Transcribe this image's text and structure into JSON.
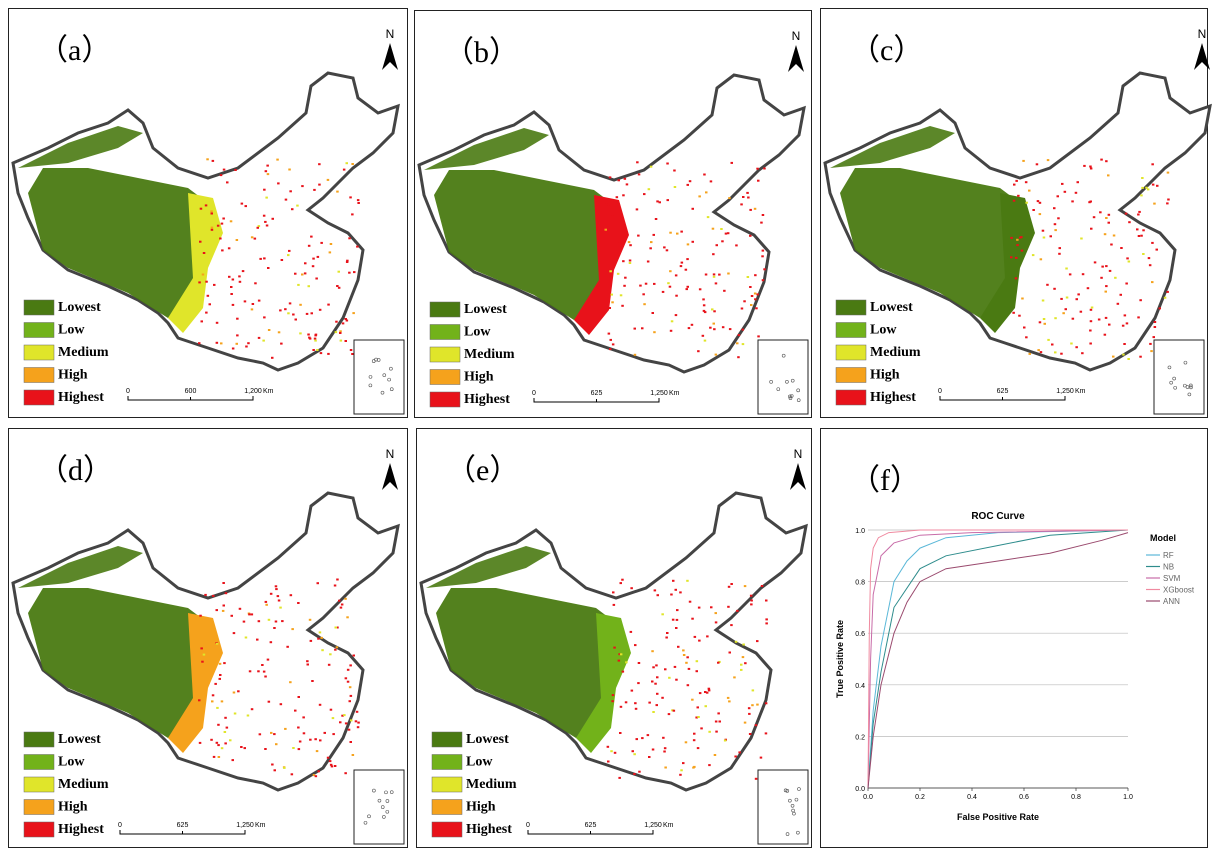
{
  "map_colors": [
    "#4a7a12",
    "#72b21a",
    "#e0e52a",
    "#f5a21c",
    "#e8121a"
  ],
  "panels": [
    {
      "label": "（a）",
      "north": "N",
      "legend": [
        "Lowest",
        "Low",
        "Medium",
        "High",
        "Highest"
      ],
      "scale": [
        "0",
        "600",
        "1,200",
        "Km"
      ]
    },
    {
      "label": "（b）",
      "north": "N",
      "legend": [
        "Lowest",
        "Low",
        "Medium",
        "High",
        "Highest"
      ],
      "scale": [
        "0",
        "625",
        "1,250",
        "Km"
      ]
    },
    {
      "label": "（c）",
      "north": "N",
      "legend": [
        "Lowest",
        "Low",
        "Medium",
        "High",
        "Highest"
      ],
      "scale": [
        "0",
        "625",
        "1,250",
        "Km"
      ]
    },
    {
      "label": "（d）",
      "north": "N",
      "legend": [
        "Lowest",
        "Low",
        "Medium",
        "High",
        "Highest"
      ],
      "scale": [
        "0",
        "625",
        "1,250",
        "Km"
      ]
    },
    {
      "label": "（e）",
      "north": "N",
      "legend": [
        "Lowest",
        "Low",
        "Medium",
        "High",
        "Highest"
      ],
      "scale": [
        "0",
        "625",
        "1,250",
        "Km"
      ]
    }
  ],
  "chart_data": {
    "type": "line",
    "label": "（f）",
    "title": "ROC Curve",
    "x_label": "False Positive Rate",
    "y_label": "True Positive Rate",
    "legend_title": "Model",
    "xlim": [
      0,
      1
    ],
    "ylim": [
      0,
      1
    ],
    "xticks": [
      {
        "value": 0,
        "label": "0.0"
      },
      0.2,
      0.4,
      0.6,
      0.8,
      {
        "value": 1,
        "label": "1.0"
      }
    ],
    "yticks": [
      {
        "value": 0,
        "label": "0.0"
      },
      0.2,
      0.4,
      0.6,
      0.8,
      {
        "value": 1,
        "label": "1.0"
      }
    ],
    "grid": true,
    "series": [
      {
        "name": "RF",
        "color": "#5bb8d8",
        "x": [
          0,
          0.02,
          0.05,
          0.1,
          0.15,
          0.2,
          0.3,
          0.5,
          1
        ],
        "values": [
          0,
          0.3,
          0.55,
          0.8,
          0.88,
          0.93,
          0.97,
          0.99,
          1
        ]
      },
      {
        "name": "NB",
        "color": "#2e8c8c",
        "x": [
          0,
          0.02,
          0.05,
          0.1,
          0.2,
          0.3,
          0.5,
          0.7,
          1
        ],
        "values": [
          0,
          0.25,
          0.45,
          0.7,
          0.85,
          0.9,
          0.94,
          0.98,
          1
        ]
      },
      {
        "name": "SVM",
        "color": "#c86ca8",
        "x": [
          0,
          0.01,
          0.02,
          0.05,
          0.1,
          0.2,
          0.4,
          1
        ],
        "values": [
          0,
          0.5,
          0.75,
          0.9,
          0.95,
          0.98,
          0.99,
          1
        ]
      },
      {
        "name": "XGboost",
        "color": "#f08aa0",
        "x": [
          0,
          0.005,
          0.01,
          0.02,
          0.04,
          0.08,
          0.2,
          1
        ],
        "values": [
          0,
          0.6,
          0.85,
          0.93,
          0.97,
          0.99,
          1,
          1
        ]
      },
      {
        "name": "ANN",
        "color": "#9a4a6e",
        "x": [
          0,
          0.02,
          0.05,
          0.1,
          0.15,
          0.2,
          0.3,
          0.5,
          0.7,
          0.9,
          1
        ],
        "values": [
          0,
          0.2,
          0.4,
          0.6,
          0.72,
          0.8,
          0.85,
          0.88,
          0.91,
          0.96,
          0.99
        ]
      }
    ]
  }
}
